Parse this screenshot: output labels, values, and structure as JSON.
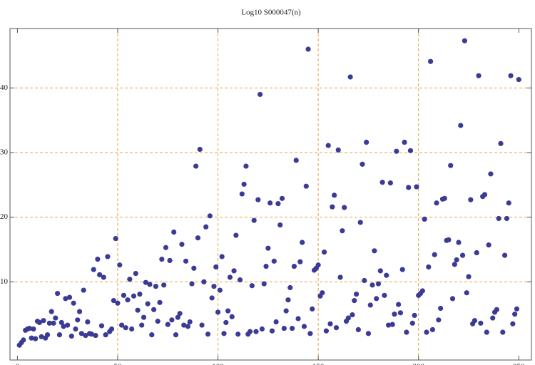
{
  "chart_data": {
    "type": "scatter",
    "title": "Log10 S000047(n)",
    "color": "#3b3b96",
    "grid_color": "#e8a040",
    "xlim": [
      -3.7,
      256.3
    ],
    "ylim": [
      -2.1,
      49.2
    ],
    "xticks": [
      0,
      50,
      100,
      150,
      200,
      250
    ],
    "yticks": [
      10,
      20,
      30,
      40
    ],
    "xgrid": [
      50,
      100,
      150,
      200
    ],
    "ygrid": [
      10,
      20,
      30,
      40
    ],
    "x": [
      1,
      2,
      3,
      4,
      5,
      6,
      7,
      8,
      9,
      10,
      11,
      12,
      13,
      14,
      15,
      16,
      17,
      18,
      19,
      20,
      21,
      22,
      23,
      24,
      25,
      26,
      27,
      28,
      29,
      30,
      31,
      32,
      33,
      34,
      35,
      36,
      37,
      38,
      39,
      40,
      41,
      42,
      43,
      44,
      45,
      46,
      47,
      48,
      49,
      50,
      51,
      52,
      53,
      54,
      55,
      56,
      57,
      58,
      59,
      60,
      61,
      62,
      63,
      64,
      65,
      66,
      67,
      68,
      69,
      70,
      71,
      72,
      73,
      74,
      75,
      76,
      77,
      78,
      79,
      80,
      81,
      82,
      83,
      84,
      85,
      86,
      87,
      88,
      89,
      90,
      91,
      92,
      93,
      94,
      95,
      96,
      97,
      98,
      99,
      100,
      101,
      102,
      103,
      104,
      105,
      106,
      107,
      108,
      109,
      110,
      111,
      112,
      113,
      114,
      115,
      116,
      117,
      118,
      119,
      120,
      121,
      122,
      123,
      124,
      125,
      126,
      127,
      128,
      129,
      130,
      131,
      132,
      133,
      134,
      135,
      136,
      137,
      138,
      139,
      140,
      141,
      142,
      143,
      144,
      145,
      146,
      147,
      148,
      149,
      150,
      151,
      152,
      153,
      154,
      155,
      156,
      157,
      158,
      159,
      160,
      161,
      162,
      163,
      164,
      165,
      166,
      167,
      168,
      169,
      170,
      171,
      172,
      173,
      174,
      175,
      176,
      177,
      178,
      179,
      180,
      181,
      182,
      183,
      184,
      185,
      186,
      187,
      188,
      189,
      190,
      191,
      192,
      193,
      194,
      195,
      196,
      197,
      198,
      199,
      200,
      201,
      202,
      203,
      204,
      205,
      206,
      207,
      208,
      209,
      210,
      211,
      212,
      213,
      214,
      215,
      216,
      217,
      218,
      219,
      220,
      221,
      222,
      223,
      224,
      225,
      226,
      227,
      228,
      229,
      230,
      231,
      232,
      233,
      234,
      235,
      236,
      237,
      238,
      239,
      240,
      241,
      242,
      243,
      244,
      245,
      246,
      247,
      248,
      249,
      250
    ],
    "values": [
      0.2,
      0.6,
      1.0,
      2.5,
      2.7,
      2.8,
      1.3,
      2.7,
      1.2,
      3.9,
      3.7,
      1.5,
      4.0,
      1.3,
      1.8,
      3.6,
      5.4,
      3.6,
      4.4,
      8.2,
      1.8,
      3.7,
      3.1,
      7.4,
      3.3,
      7.6,
      1.6,
      6.7,
      2.7,
      4.1,
      5.4,
      2.0,
      8.7,
      1.7,
      3.8,
      2.0,
      1.9,
      11.9,
      1.7,
      13.5,
      11.1,
      3.2,
      10.7,
      1.8,
      13.9,
      2.3,
      2.7,
      7.1,
      16.7,
      6.7,
      12.6,
      3.3,
      7.9,
      2.9,
      7.2,
      10.4,
      2.7,
      7.8,
      11.3,
      5.6,
      8.1,
      3.3,
      4.5,
      9.9,
      6.6,
      9.6,
      1.8,
      5.7,
      9.3,
      3.9,
      6.8,
      13.5,
      9.5,
      15.3,
      3.4,
      13.3,
      4.1,
      17.7,
      1.8,
      4.5,
      5.1,
      15.8,
      3.3,
      13.2,
      3.1,
      3.8,
      9.7,
      12.1,
      27.9,
      16.8,
      30.5,
      3.3,
      10.0,
      18.5,
      1.9,
      20.2,
      7.5,
      9.3,
      12.3,
      5.3,
      8.7,
      13.9,
      2.0,
      3.7,
      5.5,
      10.7,
      4.6,
      11.7,
      17.2,
      1.9,
      10.3,
      23.6,
      25.1,
      27.9,
      1.9,
      2.3,
      9.4,
      19.5,
      2.3,
      22.7,
      39.0,
      2.7,
      9.7,
      12.4,
      15.2,
      22.2,
      2.4,
      13.2,
      3.8,
      22.1,
      18.8,
      22.9,
      2.8,
      5.5,
      7.2,
      9.1,
      2.8,
      12.4,
      28.8,
      4.3,
      13.1,
      16.1,
      3.1,
      24.8,
      46.0,
      2.0,
      5.8,
      11.8,
      12.1,
      12.6,
      7.8,
      8.3,
      14.6,
      2.4,
      31.1,
      3.5,
      21.6,
      23.4,
      2.9,
      30.4,
      10.7,
      17.9,
      21.5,
      3.9,
      4.4,
      41.7,
      4.9,
      7.1,
      8.1,
      2.6,
      19.2,
      28.2,
      10.2,
      31.6,
      2.0,
      6.4,
      9.5,
      14.8,
      7.4,
      9.7,
      11.7,
      25.4,
      7.9,
      11.0,
      3.3,
      25.3,
      3.4,
      5.0,
      30.2,
      6.5,
      5.2,
      11.9,
      31.6,
      2.2,
      24.6,
      30.3,
      3.6,
      4.8,
      24.7,
      7.9,
      8.2,
      8.6,
      19.7,
      2.2,
      12.3,
      44.1,
      2.6,
      14.2,
      22.2,
      4.1,
      5.9,
      22.8,
      22.9,
      16.4,
      16.5,
      28.0,
      7.4,
      12.7,
      13.4,
      16.1,
      34.2,
      14.1,
      47.3,
      8.3,
      10.8,
      22.7,
      3.5,
      4.0,
      14.5,
      41.9,
      3.6,
      23.2,
      23.5,
      2.2,
      15.7,
      26.7,
      4.4,
      5.3,
      5.7,
      19.8,
      31.4,
      2.2,
      14.1,
      19.8,
      22.2,
      41.9,
      3.5,
      5.0,
      5.8,
      41.3
    ]
  }
}
